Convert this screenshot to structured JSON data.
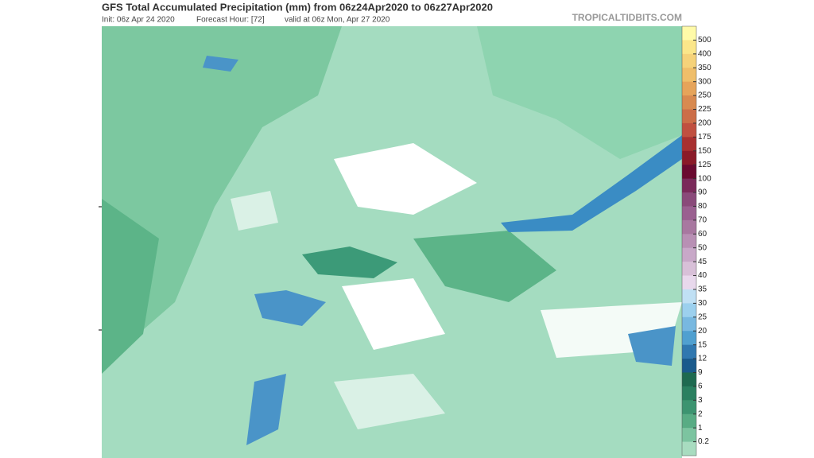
{
  "header": {
    "title": "GFS Total Accumulated Precipitation (mm) from 06z24Apr2020 to 06z27Apr2020",
    "init": "Init: 06z Apr 24 2020",
    "forecast_hour": "Forecast Hour: [72]",
    "valid": "valid at 06z Mon, Apr 27 2020",
    "watermark": "TROPICALTIDBITS.COM"
  },
  "colorbar": {
    "colors": [
      "#fffaa8",
      "#fbe68a",
      "#f5d27a",
      "#efbe6a",
      "#e6a45a",
      "#d88a50",
      "#cc6e48",
      "#c05040",
      "#a83030",
      "#8a1a28",
      "#6a0a30",
      "#7a2a5a",
      "#8a4a7a",
      "#9a6090",
      "#a878a0",
      "#b890b4",
      "#c8a8c8",
      "#d8c0d8",
      "#e8d8ec",
      "#c0e0f4",
      "#9cd0ee",
      "#78b8e0",
      "#50a0d0",
      "#3078b0",
      "#1a5a8c",
      "#1e6a50",
      "#2a8060",
      "#3c9470",
      "#58ac84",
      "#7cc4a0",
      "#a8dcc0"
    ],
    "labels": [
      "500",
      "400",
      "350",
      "300",
      "250",
      "225",
      "200",
      "175",
      "150",
      "125",
      "100",
      "90",
      "80",
      "70",
      "60",
      "50",
      "45",
      "40",
      "35",
      "30",
      "25",
      "20",
      "15",
      "12",
      "9",
      "6",
      "3",
      "2",
      "1",
      "0.2"
    ]
  }
}
